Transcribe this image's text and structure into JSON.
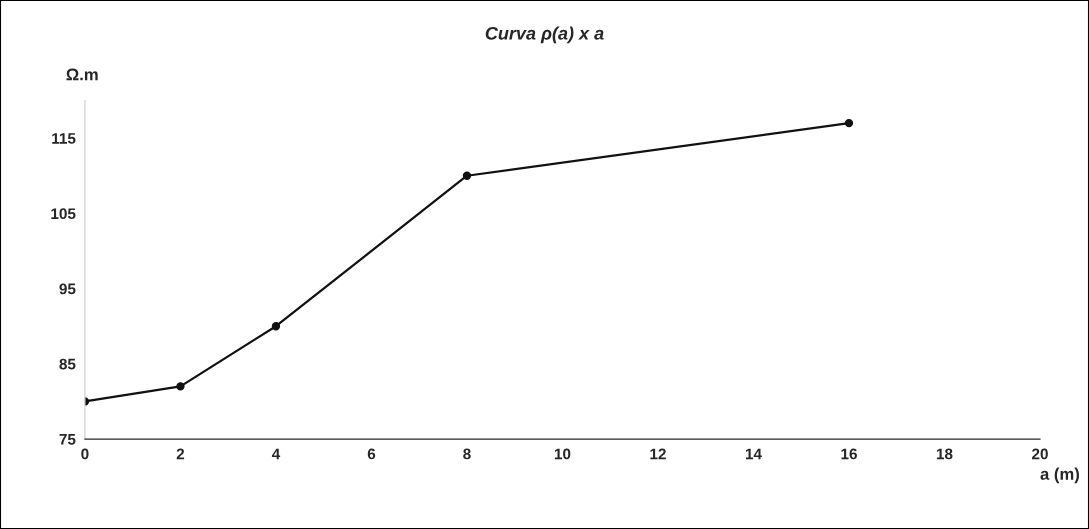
{
  "chart_data": {
    "type": "line",
    "title": "Curva ρ(a) x a",
    "ylabel": "Ω.m",
    "xlabel": "a (m)",
    "x": [
      0,
      2,
      4,
      8,
      16
    ],
    "series": [
      {
        "color": "#111111",
        "values": [
          80,
          82,
          90,
          110,
          117
        ]
      }
    ],
    "xlim": [
      0,
      20
    ],
    "xticks": [
      0,
      2,
      4,
      6,
      8,
      10,
      12,
      14,
      16,
      18,
      20
    ],
    "ylim": [
      75,
      120
    ],
    "yticks": [
      75,
      85,
      95,
      105,
      115
    ],
    "grid": false,
    "legend": false,
    "marker": "circle",
    "line_style": "solid"
  }
}
